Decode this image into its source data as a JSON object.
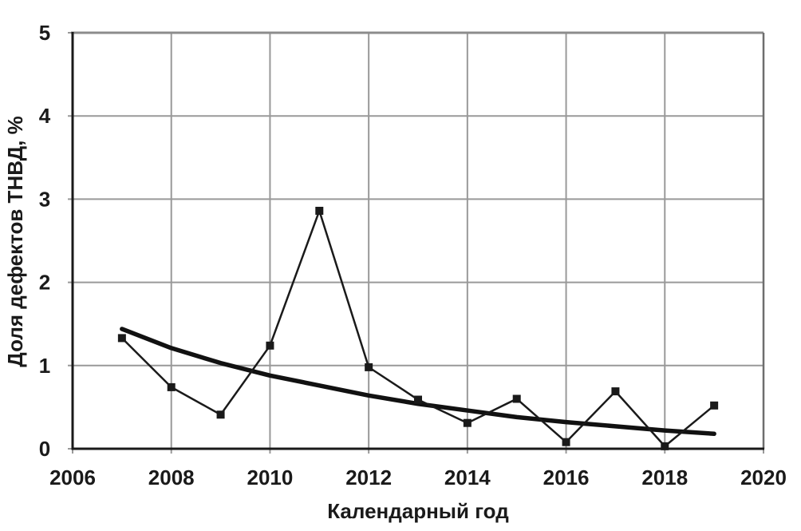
{
  "chart_data": {
    "type": "line",
    "title": "",
    "xlabel": "Календарный год",
    "ylabel": "Доля дефектов ТНВД, %",
    "xlim": [
      2006,
      2020
    ],
    "ylim": [
      0,
      5
    ],
    "xticks": [
      2006,
      2008,
      2010,
      2012,
      2014,
      2016,
      2018,
      2020
    ],
    "yticks": [
      0,
      1,
      2,
      3,
      4,
      5
    ],
    "grid": true,
    "legend_position": "none",
    "x": [
      2007,
      2008,
      2009,
      2010,
      2011,
      2012,
      2013,
      2014,
      2015,
      2016,
      2017,
      2018,
      2019
    ],
    "series": [
      {
        "id": "measured",
        "marker": "square",
        "marker_size": 10,
        "line_width": 2.5,
        "color": "#1a1a1a",
        "values": [
          1.33,
          0.74,
          0.41,
          1.24,
          2.86,
          0.98,
          0.59,
          0.31,
          0.6,
          0.08,
          0.69,
          0.03,
          0.52
        ]
      },
      {
        "id": "trend",
        "marker": "none",
        "marker_size": 0,
        "line_width": 5.5,
        "color": "#111111",
        "values": [
          1.44,
          1.21,
          1.03,
          0.88,
          0.76,
          0.64,
          0.54,
          0.46,
          0.38,
          0.32,
          0.27,
          0.22,
          0.18
        ]
      }
    ],
    "colors": {
      "grid": "#999999",
      "axis": "#1a1a1a",
      "border_top": "#8c8c8c",
      "border_right": "#6e6e6e",
      "text": "#1a1a1a",
      "background": "#ffffff"
    }
  }
}
